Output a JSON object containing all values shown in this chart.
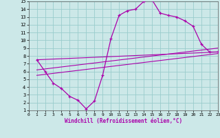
{
  "xlabel": "Windchill (Refroidissement éolien,°C)",
  "bg_color": "#cce8e8",
  "line_color": "#aa00aa",
  "grid_color": "#99cccc",
  "xlim": [
    0,
    23
  ],
  "ylim": [
    1,
    15
  ],
  "xticks": [
    0,
    1,
    2,
    3,
    4,
    5,
    6,
    7,
    8,
    9,
    10,
    11,
    12,
    13,
    14,
    15,
    16,
    17,
    18,
    19,
    20,
    21,
    22,
    23
  ],
  "yticks": [
    1,
    2,
    3,
    4,
    5,
    6,
    7,
    8,
    9,
    10,
    11,
    12,
    13,
    14,
    15
  ],
  "main_x": [
    1,
    2,
    3,
    4,
    5,
    6,
    7,
    8,
    9,
    10,
    11,
    12,
    13,
    14,
    15,
    16,
    17,
    18,
    19,
    20,
    21,
    22,
    23
  ],
  "main_y": [
    7.5,
    6.0,
    4.5,
    3.8,
    2.8,
    2.3,
    1.2,
    2.2,
    5.5,
    10.2,
    13.2,
    13.8,
    14.0,
    15.0,
    15.2,
    13.5,
    13.2,
    13.0,
    12.5,
    11.8,
    9.5,
    8.5,
    8.5
  ],
  "line1_x": [
    1,
    23
  ],
  "line1_y": [
    7.5,
    8.5
  ],
  "line2_x": [
    1,
    23
  ],
  "line2_y": [
    6.2,
    9.0
  ],
  "line3_x": [
    1,
    23
  ],
  "line3_y": [
    5.5,
    8.3
  ]
}
